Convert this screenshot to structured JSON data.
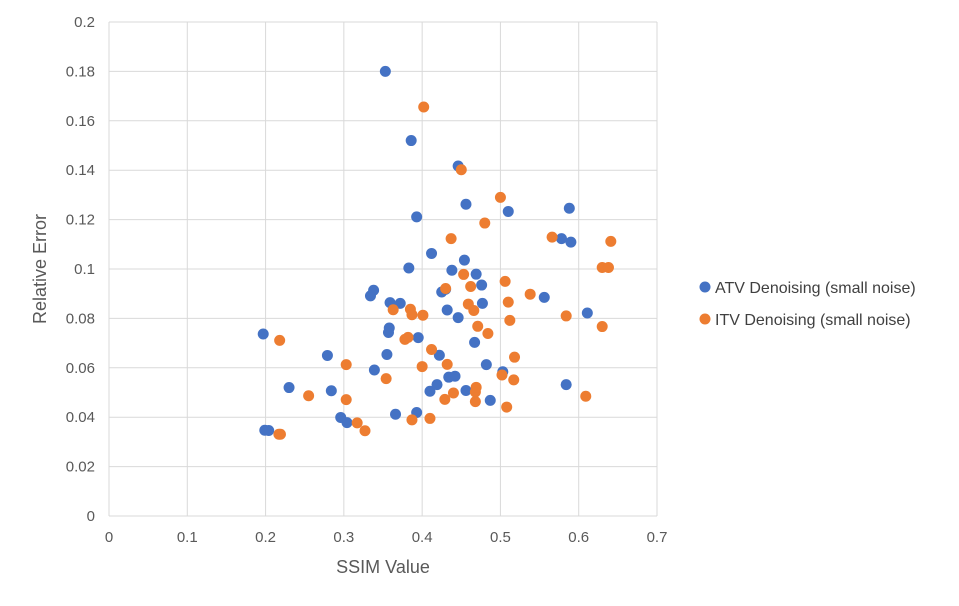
{
  "chart_data": {
    "type": "scatter",
    "title": "",
    "xlabel": "SSIM Value",
    "ylabel": "Relative Error",
    "xlim": [
      0,
      0.7
    ],
    "ylim": [
      0,
      0.2
    ],
    "xticks": [
      "0",
      "0.1",
      "0.2",
      "0.3",
      "0.4",
      "0.5",
      "0.6",
      "0.7"
    ],
    "yticks": [
      "0",
      "0.02",
      "0.04",
      "0.06",
      "0.08",
      "0.1",
      "0.12",
      "0.14",
      "0.16",
      "0.18",
      "0.2"
    ],
    "grid": true,
    "legend_position": "right",
    "series": [
      {
        "name": "ATV Denoising (small noise)",
        "color": "#4472C4",
        "points": [
          [
            0.197,
            0.0737
          ],
          [
            0.199,
            0.0347
          ],
          [
            0.204,
            0.0346
          ],
          [
            0.23,
            0.052
          ],
          [
            0.279,
            0.065
          ],
          [
            0.284,
            0.0507
          ],
          [
            0.296,
            0.0399
          ],
          [
            0.304,
            0.0378
          ],
          [
            0.334,
            0.0891
          ],
          [
            0.338,
            0.0914
          ],
          [
            0.339,
            0.0591
          ],
          [
            0.355,
            0.0654
          ],
          [
            0.357,
            0.0743
          ],
          [
            0.358,
            0.0761
          ],
          [
            0.359,
            0.0864
          ],
          [
            0.353,
            0.18
          ],
          [
            0.366,
            0.0412
          ],
          [
            0.372,
            0.0861
          ],
          [
            0.383,
            0.1004
          ],
          [
            0.386,
            0.152
          ],
          [
            0.393,
            0.1211
          ],
          [
            0.393,
            0.0419
          ],
          [
            0.395,
            0.0722
          ],
          [
            0.41,
            0.0505
          ],
          [
            0.412,
            0.1063
          ],
          [
            0.419,
            0.0532
          ],
          [
            0.422,
            0.0651
          ],
          [
            0.425,
            0.0907
          ],
          [
            0.43,
            0.0918
          ],
          [
            0.432,
            0.0834
          ],
          [
            0.434,
            0.0562
          ],
          [
            0.438,
            0.0995
          ],
          [
            0.442,
            0.0566
          ],
          [
            0.446,
            0.0803
          ],
          [
            0.446,
            0.1417
          ],
          [
            0.454,
            0.1036
          ],
          [
            0.456,
            0.0508
          ],
          [
            0.456,
            0.1262
          ],
          [
            0.467,
            0.0703
          ],
          [
            0.469,
            0.0979
          ],
          [
            0.476,
            0.0935
          ],
          [
            0.477,
            0.0861
          ],
          [
            0.482,
            0.0613
          ],
          [
            0.487,
            0.0468
          ],
          [
            0.503,
            0.0584
          ],
          [
            0.51,
            0.1233
          ],
          [
            0.556,
            0.0885
          ],
          [
            0.578,
            0.1123
          ],
          [
            0.584,
            0.0532
          ],
          [
            0.588,
            0.1246
          ],
          [
            0.59,
            0.1109
          ],
          [
            0.611,
            0.0822
          ]
        ]
      },
      {
        "name": "ITV Denoising (small noise)",
        "color": "#ED7D31",
        "points": [
          [
            0.217,
            0.0331
          ],
          [
            0.219,
            0.0331
          ],
          [
            0.218,
            0.0711
          ],
          [
            0.255,
            0.0487
          ],
          [
            0.303,
            0.0471
          ],
          [
            0.303,
            0.0613
          ],
          [
            0.317,
            0.0377
          ],
          [
            0.327,
            0.0345
          ],
          [
            0.354,
            0.0556
          ],
          [
            0.363,
            0.0835
          ],
          [
            0.378,
            0.0715
          ],
          [
            0.382,
            0.0723
          ],
          [
            0.385,
            0.0837
          ],
          [
            0.387,
            0.0815
          ],
          [
            0.387,
            0.0389
          ],
          [
            0.4,
            0.0605
          ],
          [
            0.401,
            0.0813
          ],
          [
            0.402,
            0.1656
          ],
          [
            0.41,
            0.0395
          ],
          [
            0.412,
            0.0674
          ],
          [
            0.429,
            0.0472
          ],
          [
            0.43,
            0.0921
          ],
          [
            0.432,
            0.0614
          ],
          [
            0.437,
            0.1123
          ],
          [
            0.44,
            0.0498
          ],
          [
            0.45,
            0.1402
          ],
          [
            0.453,
            0.0978
          ],
          [
            0.459,
            0.0858
          ],
          [
            0.462,
            0.0929
          ],
          [
            0.466,
            0.0832
          ],
          [
            0.468,
            0.0463
          ],
          [
            0.468,
            0.0502
          ],
          [
            0.469,
            0.0521
          ],
          [
            0.471,
            0.0768
          ],
          [
            0.48,
            0.1186
          ],
          [
            0.484,
            0.0739
          ],
          [
            0.5,
            0.129
          ],
          [
            0.502,
            0.0571
          ],
          [
            0.506,
            0.095
          ],
          [
            0.508,
            0.0441
          ],
          [
            0.51,
            0.0866
          ],
          [
            0.512,
            0.0792
          ],
          [
            0.517,
            0.0551
          ],
          [
            0.518,
            0.0643
          ],
          [
            0.538,
            0.0898
          ],
          [
            0.566,
            0.1129
          ],
          [
            0.584,
            0.081
          ],
          [
            0.609,
            0.0485
          ],
          [
            0.63,
            0.1006
          ],
          [
            0.63,
            0.0767
          ],
          [
            0.638,
            0.1006
          ],
          [
            0.641,
            0.1112
          ]
        ]
      }
    ]
  }
}
